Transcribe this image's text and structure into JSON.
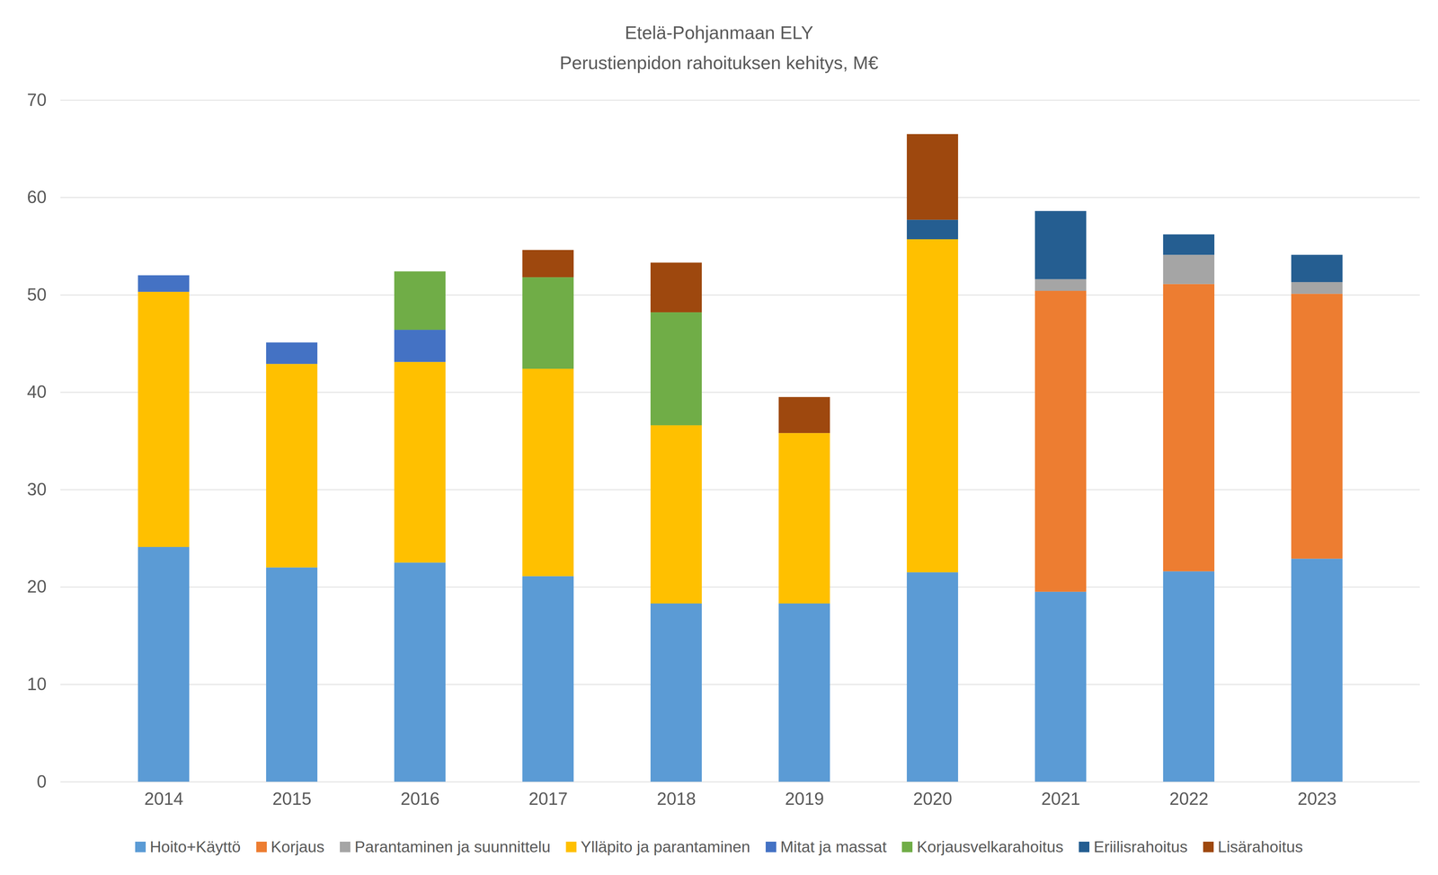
{
  "chart_data": {
    "type": "bar",
    "stacked": true,
    "title": "Etelä-Pohjanmaan ELY",
    "subtitle": "Perustienpidon rahoituksen kehitys, M€",
    "categories": [
      "2014",
      "2015",
      "2016",
      "2017",
      "2018",
      "2019",
      "2020",
      "2021",
      "2022",
      "2023"
    ],
    "series": [
      {
        "name": "Hoito+Käyttö",
        "color": "#5b9bd5",
        "values": [
          24.1,
          22.0,
          22.5,
          21.1,
          18.3,
          18.3,
          21.5,
          19.5,
          21.6,
          22.9
        ]
      },
      {
        "name": "Korjaus",
        "color": "#ed7d31",
        "values": [
          null,
          null,
          null,
          null,
          null,
          null,
          null,
          30.9,
          29.5,
          27.2
        ]
      },
      {
        "name": "Parantaminen ja suunnittelu",
        "color": "#a5a5a5",
        "values": [
          null,
          null,
          null,
          null,
          null,
          null,
          null,
          1.2,
          3.0,
          1.2
        ]
      },
      {
        "name": "Ylläpito ja parantaminen",
        "color": "#ffc000",
        "values": [
          26.2,
          20.9,
          20.6,
          21.3,
          18.3,
          17.5,
          34.2,
          null,
          null,
          null
        ]
      },
      {
        "name": "Mitat ja massat",
        "color": "#4472c4",
        "values": [
          1.7,
          2.2,
          3.3,
          null,
          null,
          null,
          null,
          null,
          null,
          null
        ]
      },
      {
        "name": "Korjausvelkarahoitus",
        "color": "#70ad47",
        "values": [
          null,
          null,
          6.0,
          9.4,
          11.6,
          null,
          null,
          null,
          null,
          null
        ]
      },
      {
        "name": "Eriilisrahoitus",
        "color": "#255e91",
        "values": [
          null,
          null,
          null,
          null,
          null,
          null,
          2.0,
          7.0,
          2.1,
          2.8
        ]
      },
      {
        "name": "Lisärahoitus",
        "color": "#9e480e",
        "values": [
          null,
          null,
          null,
          2.8,
          5.1,
          3.7,
          8.8,
          null,
          null,
          null
        ]
      }
    ],
    "ylim": [
      0,
      70
    ],
    "yticks": [
      0,
      10,
      20,
      30,
      40,
      50,
      60,
      70
    ],
    "grid": true,
    "legend": "bottom"
  }
}
